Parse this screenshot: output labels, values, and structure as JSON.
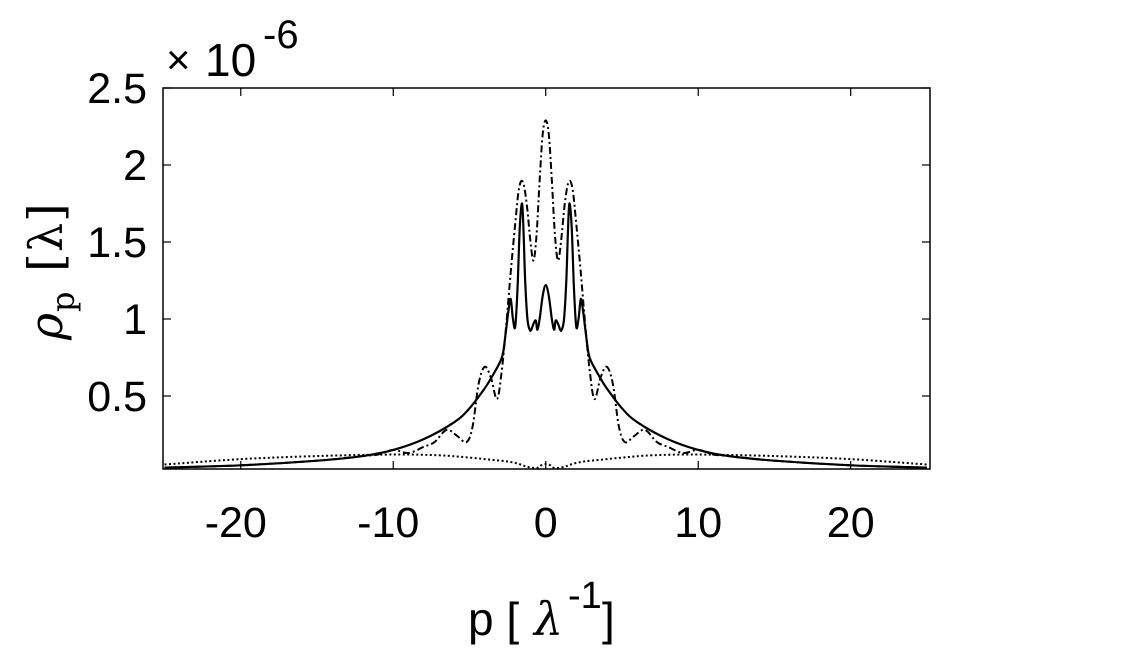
{
  "chart_data": {
    "type": "line",
    "title": "",
    "xlabel": "p [λ⁻¹]",
    "xlabel_parts": {
      "main": "p [",
      "greek": "λ",
      "sup": "-1",
      "close": "]"
    },
    "ylabel": "ρ_p [λ]",
    "ylabel_parts": {
      "rho": "ρ",
      "sub": "p",
      "bracket_open": "[",
      "greek": "λ",
      "bracket_close": "]"
    },
    "y_multiplier": "×10^-6",
    "y_multiplier_parts": {
      "times": "×",
      "base": "10",
      "exp": "-6"
    },
    "xlim": [
      -25.1,
      25.2
    ],
    "ylim": [
      0.026,
      2.5
    ],
    "xticks": [
      -20,
      -10,
      0,
      10,
      20
    ],
    "xtick_labels": [
      "-20",
      "-10",
      "0",
      "10",
      "20"
    ],
    "yticks": [
      0.5,
      1,
      1.5,
      2,
      2.5
    ],
    "ytick_labels": [
      "0.5",
      "1",
      "1.5",
      "2",
      "2.5"
    ],
    "grid": false,
    "legend": null,
    "series": [
      {
        "name": "solid",
        "style": "solid",
        "color": "#000000",
        "x": [
          -25,
          -20,
          -15,
          -12,
          -10,
          -8,
          -6,
          -5,
          -4,
          -3.5,
          -3,
          -2.8,
          -2.6,
          -2.45,
          -2.3,
          -2.15,
          -2.0,
          -1.85,
          -1.7,
          -1.55,
          -1.45,
          -1.35,
          -1.2,
          -1.05,
          -0.95,
          -0.8,
          -0.65,
          -0.55,
          -0.4,
          -0.2,
          0,
          0.2,
          0.4,
          0.55,
          0.65,
          0.8,
          0.95,
          1.05,
          1.2,
          1.35,
          1.45,
          1.55,
          1.7,
          1.85,
          2.0,
          2.15,
          2.3,
          2.45,
          2.6,
          2.8,
          3,
          3.5,
          4,
          5,
          6,
          8,
          10,
          12,
          15,
          20,
          25
        ],
        "y": [
          0.035,
          0.05,
          0.08,
          0.11,
          0.15,
          0.22,
          0.33,
          0.42,
          0.55,
          0.63,
          0.72,
          0.78,
          0.93,
          1.05,
          1.13,
          1.0,
          0.95,
          1.2,
          1.6,
          1.75,
          1.55,
          1.25,
          1.0,
          0.93,
          0.93,
          0.97,
          0.99,
          0.93,
          1.0,
          1.15,
          1.22,
          1.15,
          1.0,
          0.93,
          0.99,
          0.97,
          0.93,
          0.93,
          1.0,
          1.25,
          1.55,
          1.75,
          1.6,
          1.2,
          0.95,
          1.0,
          1.13,
          1.05,
          0.93,
          0.78,
          0.72,
          0.63,
          0.55,
          0.42,
          0.33,
          0.22,
          0.15,
          0.11,
          0.08,
          0.05,
          0.035
        ]
      },
      {
        "name": "dash-dot",
        "style": "dashdot",
        "color": "#000000",
        "x": [
          -25,
          -20,
          -15,
          -12,
          -11,
          -10,
          -9,
          -8,
          -7.3,
          -6.5,
          -5.8,
          -5.2,
          -4.8,
          -4.4,
          -4.0,
          -3.6,
          -3.2,
          -2.9,
          -2.6,
          -2.3,
          -2.0,
          -1.75,
          -1.5,
          -1.25,
          -1.0,
          -0.8,
          -0.6,
          -0.4,
          -0.2,
          0,
          0.2,
          0.4,
          0.6,
          0.8,
          1.0,
          1.25,
          1.5,
          1.75,
          2.0,
          2.3,
          2.6,
          2.9,
          3.2,
          3.6,
          4.0,
          4.4,
          4.8,
          5.2,
          5.8,
          6.5,
          7.3,
          8,
          9,
          10,
          11,
          12,
          15,
          20,
          25
        ],
        "y": [
          0.035,
          0.05,
          0.08,
          0.11,
          0.12,
          0.15,
          0.13,
          0.17,
          0.2,
          0.28,
          0.24,
          0.2,
          0.3,
          0.58,
          0.69,
          0.62,
          0.48,
          0.65,
          0.95,
          1.3,
          1.62,
          1.85,
          1.89,
          1.75,
          1.5,
          1.38,
          1.55,
          1.9,
          2.2,
          2.29,
          2.2,
          1.9,
          1.55,
          1.38,
          1.5,
          1.75,
          1.89,
          1.85,
          1.62,
          1.3,
          0.95,
          0.65,
          0.48,
          0.62,
          0.69,
          0.58,
          0.3,
          0.2,
          0.24,
          0.28,
          0.2,
          0.17,
          0.13,
          0.15,
          0.12,
          0.11,
          0.08,
          0.05,
          0.035
        ]
      },
      {
        "name": "dotted",
        "style": "dotted",
        "color": "#000000",
        "x": [
          -25,
          -20,
          -15,
          -10,
          -7,
          -5,
          -3.5,
          -2.5,
          -1.8,
          -1.2,
          -0.6,
          -0.3,
          0,
          0.3,
          0.6,
          1.2,
          1.8,
          2.5,
          3.5,
          5,
          7,
          10,
          15,
          20,
          25
        ],
        "y": [
          0.055,
          0.09,
          0.11,
          0.12,
          0.115,
          0.1,
          0.085,
          0.075,
          0.06,
          0.04,
          0.032,
          0.05,
          0.058,
          0.05,
          0.032,
          0.04,
          0.06,
          0.075,
          0.085,
          0.1,
          0.115,
          0.12,
          0.11,
          0.09,
          0.055
        ]
      }
    ]
  }
}
